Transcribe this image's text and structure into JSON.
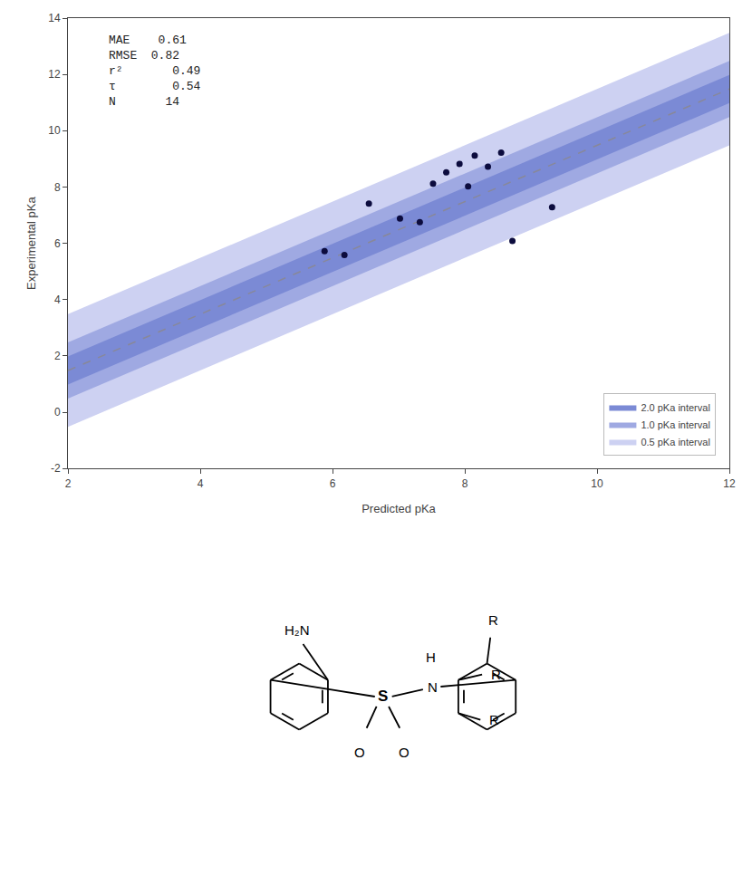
{
  "chart_data": {
    "type": "scatter",
    "xlabel": "Predicted pKa",
    "ylabel": "Experimental pKa",
    "xlim": [
      2,
      12
    ],
    "ylim": [
      -2,
      14
    ],
    "xticks": [
      2,
      4,
      6,
      8,
      10,
      12
    ],
    "yticks": [
      -2,
      0,
      2,
      4,
      6,
      8,
      10,
      12,
      14
    ],
    "grid": false,
    "legend": "lower right",
    "series": [
      {
        "name": "0.5 pKa interval",
        "type": "band",
        "color": "#cdd1f2",
        "x": [
          2,
          12
        ],
        "lower": [
          -0.52,
          9.48
        ],
        "upper": [
          3.48,
          13.48
        ]
      },
      {
        "name": "1.0 pKa interval",
        "type": "band",
        "color": "#9fa9e2",
        "x": [
          2,
          12
        ],
        "lower": [
          0.48,
          10.48
        ],
        "upper": [
          2.48,
          12.48
        ]
      },
      {
        "name": "2.0 pKa interval",
        "type": "band",
        "color": "#7b8ad5",
        "x": [
          2,
          12
        ],
        "lower": [
          0.98,
          10.98
        ],
        "upper": [
          1.98,
          11.98
        ]
      },
      {
        "type": "line",
        "color": "#888899",
        "line_style": "dashed",
        "x": [
          2,
          12
        ],
        "values": [
          1.48,
          11.48
        ]
      },
      {
        "type": "scatter",
        "color": "#0c0c3e",
        "marker": "circle",
        "x": [
          5.88,
          6.18,
          6.55,
          7.02,
          7.32,
          7.52,
          7.72,
          7.92,
          8.05,
          8.15,
          8.35,
          8.55,
          8.72,
          9.32
        ],
        "values": [
          5.72,
          5.58,
          7.41,
          6.88,
          6.75,
          8.12,
          8.52,
          8.82,
          8.02,
          9.12,
          8.72,
          9.22,
          6.08,
          7.28
        ]
      }
    ],
    "annotations": [
      "MAE    0.61\nRMSE  0.82\nr²       0.49\nτ        0.54\nN       14",
      "H₂N",
      "S",
      "O",
      "O",
      "H",
      "N",
      "R",
      "R",
      "R"
    ]
  }
}
